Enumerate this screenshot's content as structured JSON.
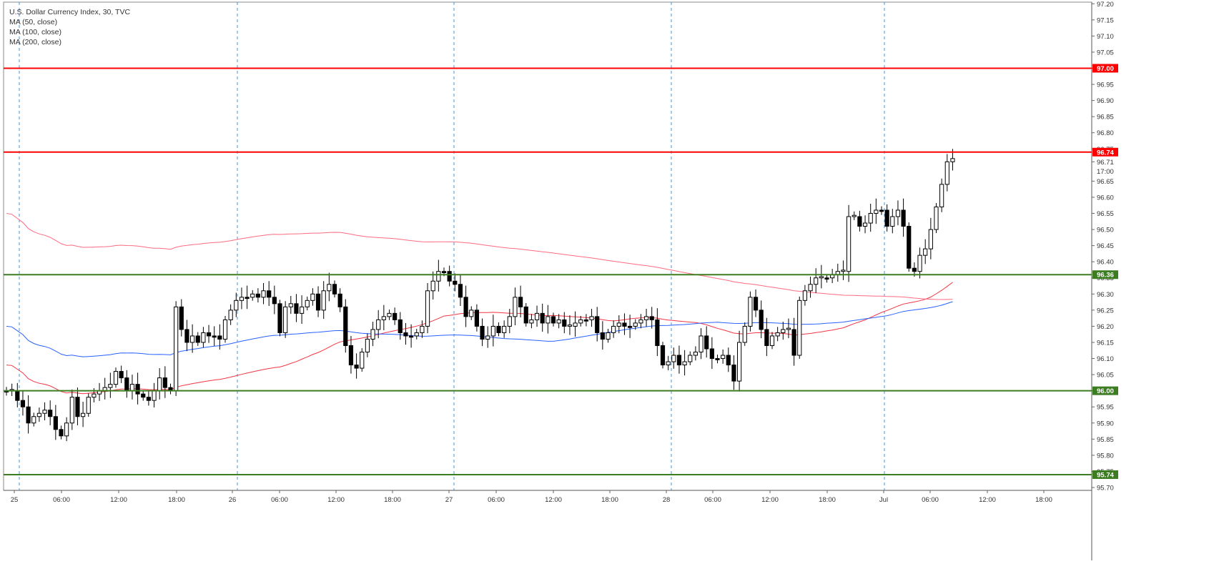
{
  "chart_data": {
    "type": "candlestick",
    "title": "U.S. Dollar Currency Index, 30, TVC",
    "indicators": [
      {
        "name": "MA (50, close)",
        "color": "#f23645"
      },
      {
        "name": "MA (100, close)",
        "color": "#2962ff"
      },
      {
        "name": "MA (200, close)",
        "color": "#ff6b81"
      }
    ],
    "y_axis": {
      "min": 95.7,
      "max": 97.2,
      "position": "right",
      "tick_labels": [
        "97.20",
        "97.15",
        "97.10",
        "97.05",
        "97.00",
        "96.95",
        "96.90",
        "96.85",
        "96.80",
        "96.75",
        "96.71",
        "96.65",
        "96.60",
        "96.55",
        "96.50",
        "96.45",
        "96.40",
        "96.35",
        "96.30",
        "96.25",
        "96.20",
        "96.15",
        "96.10",
        "96.05",
        "96.00",
        "95.95",
        "95.90",
        "95.85",
        "95.80",
        "95.75",
        "95.70"
      ],
      "countdown_label": "17:00",
      "current_price": 96.71
    },
    "x_axis": {
      "tick_labels": [
        "25",
        "06:00",
        "12:00",
        "18:00",
        "26",
        "06:00",
        "12:00",
        "18:00",
        "27",
        "06:00",
        "12:00",
        "18:00",
        "28",
        "06:00",
        "12:00",
        "18:00",
        "Jul",
        "06:00",
        "12:00",
        "18:00"
      ]
    },
    "day_separators": [
      "25",
      "26",
      "27",
      "28",
      "Jul"
    ],
    "levels": [
      {
        "value": 97.0,
        "label": "97.00",
        "color": "#ff0000"
      },
      {
        "value": 96.74,
        "label": "96.74",
        "color": "#ff0000"
      },
      {
        "value": 96.36,
        "label": "96.36",
        "color": "#3c7d22"
      },
      {
        "value": 96.0,
        "label": "96.00",
        "color": "#3c7d22"
      },
      {
        "value": 95.74,
        "label": "95.74",
        "color": "#3c7d22"
      }
    ],
    "candles_close": [
      96.0,
      96.0,
      95.97,
      95.95,
      95.9,
      95.92,
      95.93,
      95.94,
      95.92,
      95.88,
      95.86,
      95.9,
      95.98,
      95.92,
      95.93,
      95.98,
      95.99,
      96.0,
      96.01,
      96.02,
      96.06,
      96.04,
      96.0,
      96.02,
      95.99,
      95.98,
      95.97,
      96.0,
      96.04,
      96.01,
      96.0,
      96.26,
      96.19,
      96.15,
      96.17,
      96.15,
      96.18,
      96.17,
      96.17,
      96.16,
      96.22,
      96.25,
      96.28,
      96.29,
      96.29,
      96.3,
      96.29,
      96.31,
      96.29,
      96.27,
      96.18,
      96.26,
      96.27,
      96.24,
      96.26,
      96.28,
      96.3,
      96.25,
      96.31,
      96.33,
      96.3,
      96.26,
      96.14,
      96.08,
      96.07,
      96.12,
      96.16,
      96.19,
      96.22,
      96.23,
      96.24,
      96.22,
      96.18,
      96.17,
      96.17,
      96.18,
      96.2,
      96.31,
      96.34,
      96.37,
      96.37,
      96.34,
      96.33,
      96.29,
      96.23,
      96.25,
      96.2,
      96.16,
      96.17,
      96.2,
      96.18,
      96.2,
      96.23,
      96.29,
      96.26,
      96.21,
      96.22,
      96.24,
      96.21,
      96.23,
      96.21,
      96.22,
      96.2,
      96.2,
      96.21,
      96.22,
      96.22,
      96.23,
      96.18,
      96.16,
      96.18,
      96.2,
      96.21,
      96.2,
      96.2,
      96.21,
      96.22,
      96.23,
      96.22,
      96.14,
      96.08,
      96.09,
      96.11,
      96.08,
      96.09,
      96.11,
      96.12,
      96.17,
      96.13,
      96.1,
      96.1,
      96.11,
      96.08,
      96.03,
      96.15,
      96.2,
      96.29,
      96.25,
      96.19,
      96.14,
      96.17,
      96.18,
      96.19,
      96.19,
      96.11,
      96.28,
      96.31,
      96.33,
      96.35,
      96.35,
      96.35,
      96.36,
      96.37,
      96.37,
      96.54,
      96.54,
      96.51,
      96.52,
      96.55,
      96.56,
      96.56,
      96.51,
      96.54,
      96.56,
      96.51,
      96.38,
      96.37,
      96.42,
      96.44,
      96.5,
      96.57,
      96.64,
      96.71,
      96.72
    ]
  }
}
